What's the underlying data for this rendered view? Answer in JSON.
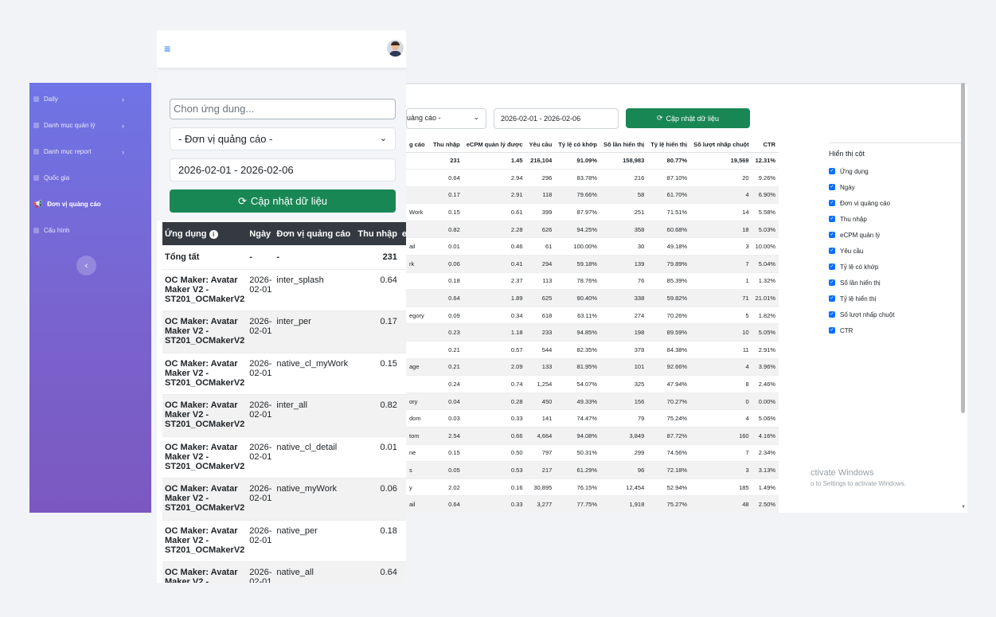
{
  "sidebar": {
    "items": [
      {
        "label": "Daily",
        "has_arrow": true
      },
      {
        "label": "Danh mục quản lý",
        "has_arrow": true
      },
      {
        "label": "Danh mục report",
        "has_arrow": true
      },
      {
        "label": "Quốc gia",
        "has_arrow": false
      },
      {
        "label": "Đơn vị quảng cáo",
        "has_arrow": false,
        "active": true
      },
      {
        "label": "Cấu hình",
        "has_arrow": false
      }
    ],
    "collapse_icon": "‹",
    "arrow_icon": "›",
    "active_icon": "📢"
  },
  "mobile": {
    "menu_icon": "≡",
    "app_input_placeholder": "Chon ứng dung...",
    "unit_select": "- Đơn vị quảng cáo -",
    "date_range": "2026-02-01 - 2026-02-06",
    "update_button": "Cập nhật dữ liệu",
    "refresh_icon": "⟳",
    "headers": {
      "app": "Ứng dụng",
      "info_icon": "i",
      "date": "Ngày",
      "unit": "Đơn vị quảng cáo",
      "revenue": "Thu nhập",
      "next": "e"
    },
    "total": {
      "app": "Tổng tất",
      "date": "-",
      "unit": "-",
      "revenue": "231"
    },
    "rows": [
      {
        "app": "OC Maker: Avatar Maker V2 - ST201_OCMakerV2",
        "date": "2026-02-01",
        "unit": "inter_splash",
        "revenue": "0.64"
      },
      {
        "app": "OC Maker: Avatar Maker V2 - ST201_OCMakerV2",
        "date": "2026-02-01",
        "unit": "inter_per",
        "revenue": "0.17"
      },
      {
        "app": "OC Maker: Avatar Maker V2 - ST201_OCMakerV2",
        "date": "2026-02-01",
        "unit": "native_cl_myWork",
        "revenue": "0.15"
      },
      {
        "app": "OC Maker: Avatar Maker V2 - ST201_OCMakerV2",
        "date": "2026-02-01",
        "unit": "inter_all",
        "revenue": "0.82"
      },
      {
        "app": "OC Maker: Avatar Maker V2 - ST201_OCMakerV2",
        "date": "2026-02-01",
        "unit": "native_cl_detail",
        "revenue": "0.01"
      },
      {
        "app": "OC Maker: Avatar Maker V2 - ST201_OCMakerV2",
        "date": "2026-02-01",
        "unit": "native_myWork",
        "revenue": "0.06"
      },
      {
        "app": "OC Maker: Avatar Maker V2 - ST201_OCMakerV2",
        "date": "2026-02-01",
        "unit": "native_per",
        "revenue": "0.18"
      },
      {
        "app": "OC Maker: Avatar Maker V2 - ST201_OCMakerV2",
        "date": "2026-02-01",
        "unit": "native_all",
        "revenue": "0.64"
      }
    ]
  },
  "desktop": {
    "unit_select": "uảng cáo -",
    "date_range": "2026-02-01 - 2026-02-06",
    "update_button": "Cập nhật dữ liệu",
    "headers": [
      "g cáo",
      "Thu nhập",
      "eCPM quản lý được",
      "Yêu cầu",
      "Tỷ lệ có khớp",
      "Số lần hiển thị",
      "Tỷ lệ hiển thị",
      "Số lượt nhấp chuột",
      "CTR"
    ],
    "total": [
      "",
      "231",
      "1.45",
      "216,104",
      "91.09%",
      "158,983",
      "80.77%",
      "19,569",
      "12.31%"
    ],
    "rows": [
      [
        "",
        "0.64",
        "2.94",
        "296",
        "83.78%",
        "216",
        "87.10%",
        "20",
        "9.26%"
      ],
      [
        "",
        "0.17",
        "2.91",
        "118",
        "79.66%",
        "58",
        "61.70%",
        "4",
        "6.90%"
      ],
      [
        "Work",
        "0.15",
        "0.61",
        "399",
        "87.97%",
        "251",
        "71.51%",
        "14",
        "5.58%"
      ],
      [
        "",
        "0.82",
        "2.28",
        "626",
        "94.25%",
        "358",
        "60.68%",
        "18",
        "5.03%"
      ],
      [
        "ail",
        "0.01",
        "0.46",
        "61",
        "100.00%",
        "30",
        "49.18%",
        "3",
        "10.00%"
      ],
      [
        "rk",
        "0.06",
        "0.41",
        "294",
        "59.18%",
        "139",
        "79.89%",
        "7",
        "5.04%"
      ],
      [
        "",
        "0.18",
        "2.37",
        "113",
        "78.76%",
        "76",
        "85.39%",
        "1",
        "1.32%"
      ],
      [
        "",
        "0.64",
        "1.89",
        "625",
        "90.40%",
        "338",
        "59.82%",
        "71",
        "21.01%"
      ],
      [
        "egory",
        "0.09",
        "0.34",
        "618",
        "63.11%",
        "274",
        "70.26%",
        "5",
        "1.82%"
      ],
      [
        "",
        "0.23",
        "1.18",
        "233",
        "94.85%",
        "198",
        "89.59%",
        "10",
        "5.05%"
      ],
      [
        "",
        "0.21",
        "0.57",
        "544",
        "82.35%",
        "378",
        "84.38%",
        "11",
        "2.91%"
      ],
      [
        "age",
        "0.21",
        "2.09",
        "133",
        "81.95%",
        "101",
        "92.66%",
        "4",
        "3.96%"
      ],
      [
        "",
        "0.24",
        "0.74",
        "1,254",
        "54.07%",
        "325",
        "47.94%",
        "8",
        "2.46%"
      ],
      [
        "ory",
        "0.04",
        "0.28",
        "450",
        "49.33%",
        "156",
        "70.27%",
        "0",
        "0.00%"
      ],
      [
        "dom",
        "0.03",
        "0.33",
        "141",
        "74.47%",
        "79",
        "75.24%",
        "4",
        "5.06%"
      ],
      [
        "tom",
        "2.54",
        "0.66",
        "4,664",
        "94.08%",
        "3,849",
        "87.72%",
        "160",
        "4.16%"
      ],
      [
        "ne",
        "0.15",
        "0.50",
        "797",
        "50.31%",
        "299",
        "74.56%",
        "7",
        "2.34%"
      ],
      [
        "s",
        "0.05",
        "0.53",
        "217",
        "61.29%",
        "96",
        "72.18%",
        "3",
        "3.13%"
      ],
      [
        "y",
        "2.02",
        "0.16",
        "30,895",
        "76.15%",
        "12,454",
        "52.94%",
        "185",
        "1.49%"
      ],
      [
        "ail",
        "0.64",
        "0.33",
        "3,277",
        "77.75%",
        "1,918",
        "75.27%",
        "48",
        "2.50%"
      ]
    ],
    "columns_panel": {
      "title": "Hiển thị cột",
      "options": [
        "Ứng dụng",
        "Ngày",
        "Đơn vị quảng cáo",
        "Thu nhập",
        "eCPM quản lý",
        "Yêu cầu",
        "Tỷ lệ có khớp",
        "Số lần hiển thị",
        "Tỷ lệ hiển thị",
        "Số lượt nhấp chuột",
        "CTR"
      ]
    },
    "watermark": {
      "line1": "ctivate Windows",
      "line2": "o to Settings to activate Windows."
    }
  }
}
